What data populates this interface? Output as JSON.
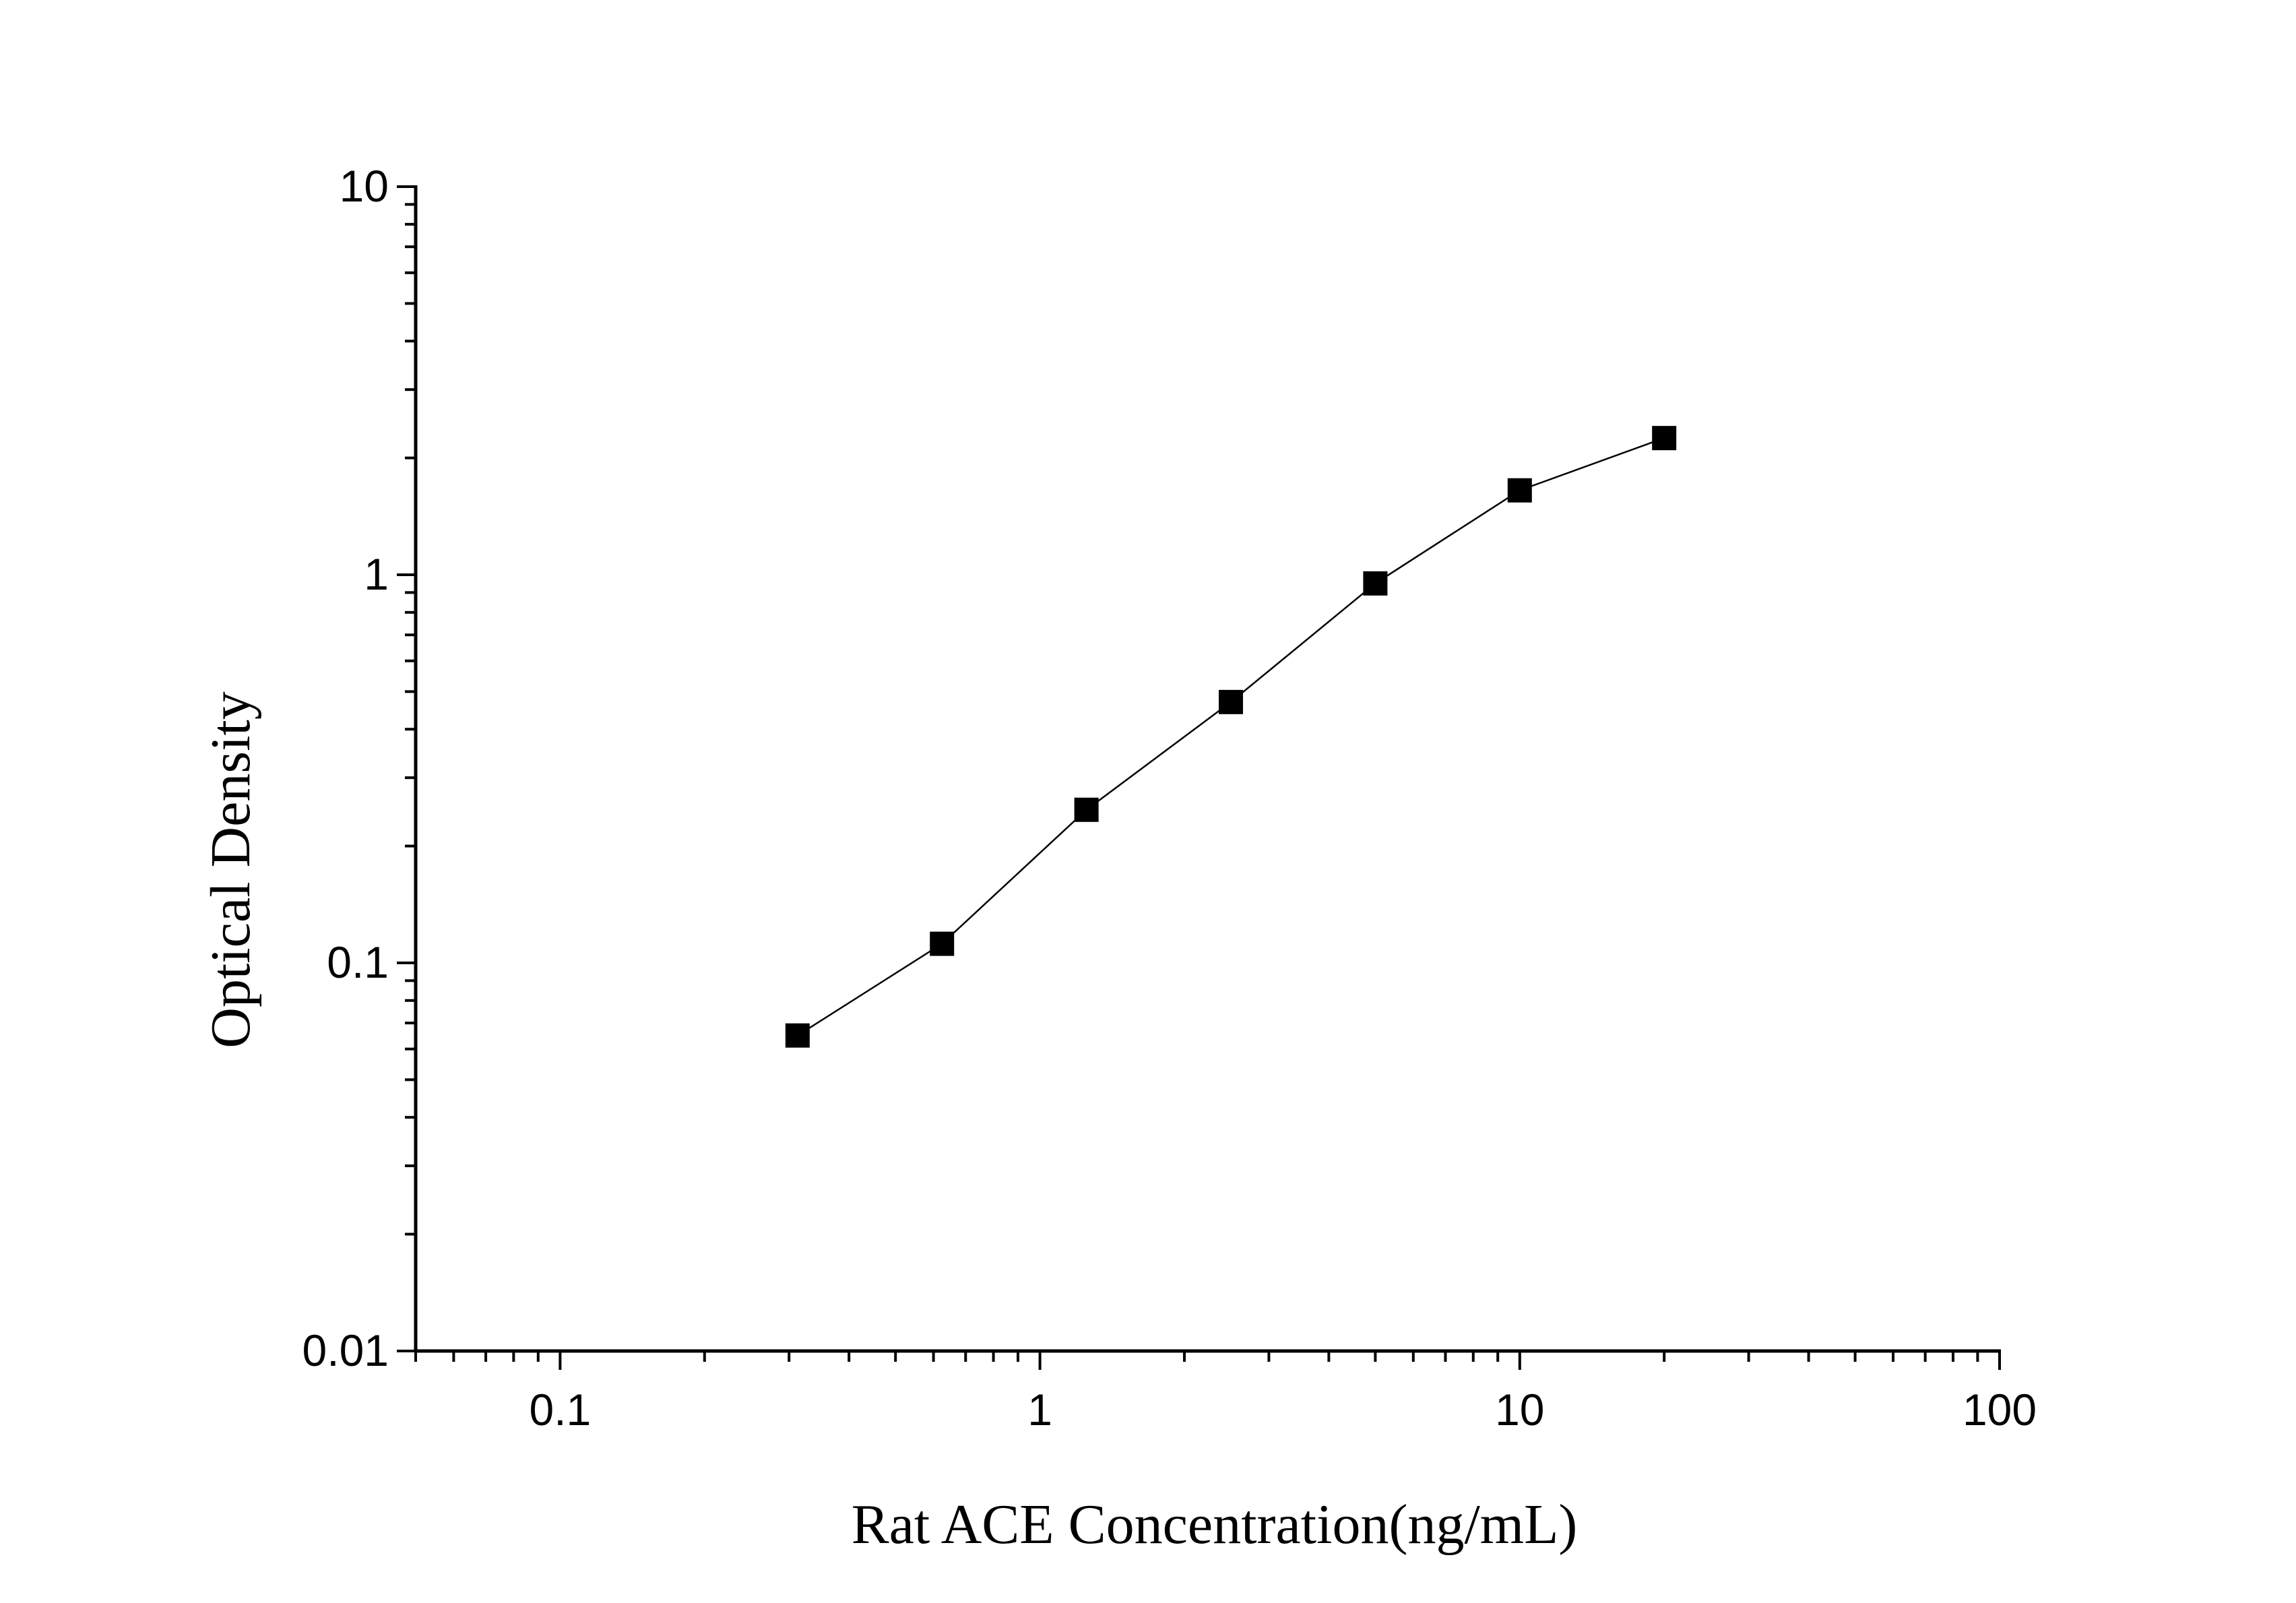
{
  "chart_data": {
    "type": "line",
    "title": "",
    "xlabel": "Rat ACE Concentration(ng/mL)",
    "ylabel": "Optical Density",
    "x_scale": "log",
    "y_scale": "log",
    "xlim": [
      0.05,
      100
    ],
    "ylim": [
      0.01,
      10
    ],
    "x_tick_labels": [
      "0.1",
      "1",
      "10",
      "100"
    ],
    "y_tick_labels": [
      "0.01",
      "0.1",
      "1",
      "10"
    ],
    "grid": false,
    "legend": "none",
    "series": [
      {
        "marker": "square",
        "color": "#000000",
        "x": [
          0.3125,
          0.625,
          1.25,
          2.5,
          5,
          10,
          20
        ],
        "y": [
          0.065,
          0.112,
          0.248,
          0.47,
          0.95,
          1.65,
          2.25
        ]
      }
    ]
  }
}
